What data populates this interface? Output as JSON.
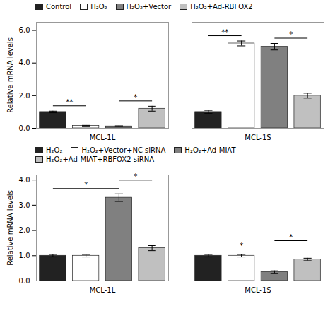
{
  "chart_data": [
    {
      "type": "bar",
      "categories": [
        "MCL-1L",
        "MCL-1S"
      ],
      "series": [
        {
          "name": "Control",
          "color": "#222222",
          "values": [
            1.0,
            1.0
          ],
          "errors": [
            0.05,
            0.1
          ]
        },
        {
          "name": "H₂O₂",
          "color": "#ffffff",
          "values": [
            0.15,
            5.2
          ],
          "errors": [
            0.03,
            0.15
          ]
        },
        {
          "name": "H₂O₂+Vector",
          "color": "#808080",
          "values": [
            0.12,
            5.0
          ],
          "errors": [
            0.03,
            0.2
          ]
        },
        {
          "name": "H₂O₂+Ad-RBFOX2",
          "color": "#C0C0C0",
          "values": [
            1.2,
            2.0
          ],
          "errors": [
            0.15,
            0.15
          ]
        }
      ],
      "ylabel": "Relative mRNA levels",
      "ylim": [
        0,
        6.5
      ],
      "yticks": [
        0,
        2,
        4,
        6
      ],
      "annotations": [
        {
          "text": "**",
          "category": "MCL-1L",
          "from": "Control",
          "to": "H₂O₂"
        },
        {
          "text": "*",
          "category": "MCL-1L",
          "from": "H₂O₂+Vector",
          "to": "H₂O₂+Ad-RBFOX2"
        },
        {
          "text": "**",
          "category": "MCL-1S",
          "from": "Control",
          "to": "H₂O₂"
        },
        {
          "text": "*",
          "category": "MCL-1S",
          "from": "H₂O₂+Vector",
          "to": "H₂O₂+Ad-RBFOX2"
        }
      ]
    },
    {
      "type": "bar",
      "categories": [
        "MCL-1L",
        "MCL-1S"
      ],
      "series": [
        {
          "name": "H₂O₂",
          "color": "#222222",
          "values": [
            1.0,
            1.0
          ],
          "errors": [
            0.05,
            0.05
          ]
        },
        {
          "name": "H₂O₂+Vector+NC siRNA",
          "color": "#ffffff",
          "values": [
            1.0,
            1.0
          ],
          "errors": [
            0.05,
            0.05
          ]
        },
        {
          "name": "H₂O₂+Ad-MIAT",
          "color": "#808080",
          "values": [
            3.3,
            0.35
          ],
          "errors": [
            0.15,
            0.05
          ]
        },
        {
          "name": "H₂O₂+Ad-MIAT+RBFOX2 siRNA",
          "color": "#C0C0C0",
          "values": [
            1.3,
            0.85
          ],
          "errors": [
            0.1,
            0.05
          ]
        }
      ],
      "ylabel": "Relative mRNA levels",
      "ylim": [
        0,
        4.2
      ],
      "yticks": [
        0,
        1,
        2,
        3,
        4
      ],
      "annotations": [
        {
          "text": "*",
          "category": "MCL-1L",
          "from": "H₂O₂",
          "to": "H₂O₂+Ad-MIAT"
        },
        {
          "text": "*",
          "category": "MCL-1L",
          "from": "H₂O₂+Ad-MIAT",
          "to": "H₂O₂+Ad-MIAT+RBFOX2 siRNA"
        },
        {
          "text": "*",
          "category": "MCL-1S",
          "from": "H₂O₂",
          "to": "H₂O₂+Ad-MIAT"
        },
        {
          "text": "*",
          "category": "MCL-1S",
          "from": "H₂O₂+Ad-MIAT",
          "to": "H₂O₂+Ad-MIAT+RBFOX2 siRNA"
        }
      ]
    }
  ]
}
